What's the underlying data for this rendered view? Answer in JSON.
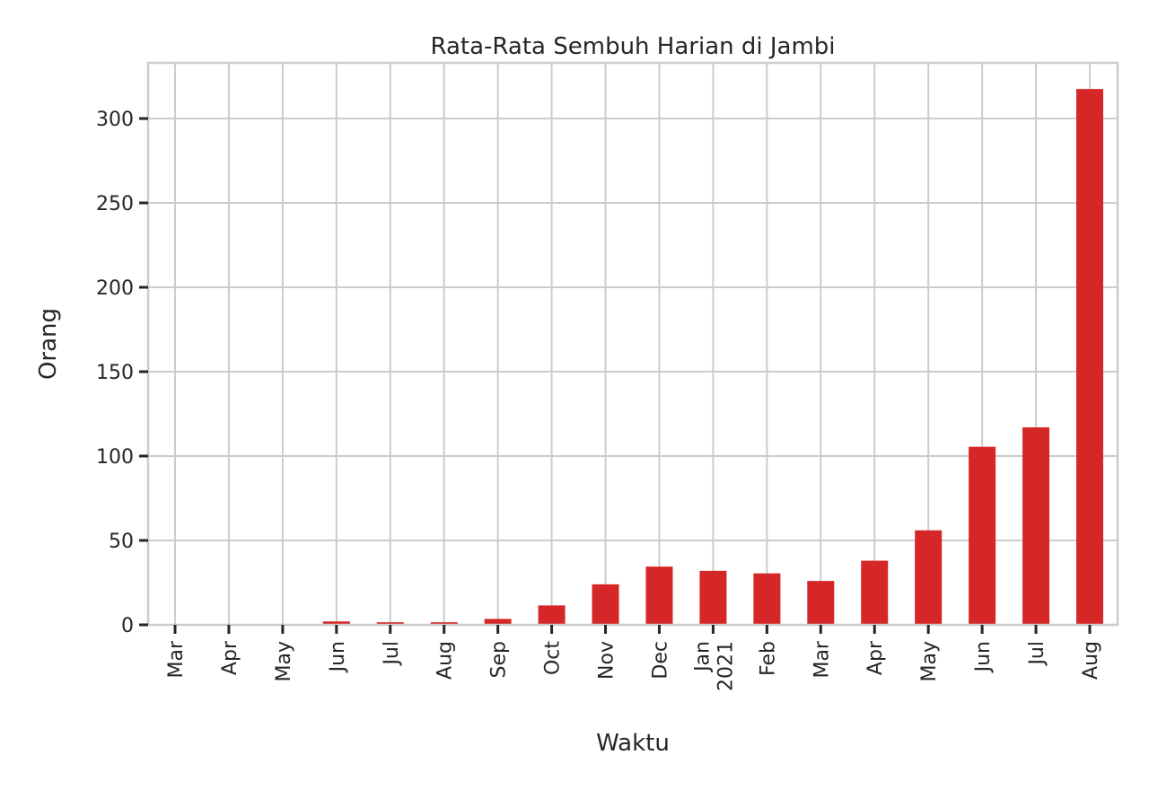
{
  "chart_data": {
    "type": "bar",
    "title": "Rata-Rata Sembuh Harian di Jambi",
    "xlabel": "Waktu",
    "ylabel": "Orang",
    "categories": [
      "Mar",
      "Apr",
      "May",
      "Jun",
      "Jul",
      "Aug",
      "Sep",
      "Oct",
      "Nov",
      "Dec",
      "Jan\n2021",
      "Feb",
      "Mar",
      "Apr",
      "May",
      "Jun",
      "Jul",
      "Aug"
    ],
    "values": [
      0,
      0,
      0,
      2,
      1.5,
      1.5,
      3.5,
      11.5,
      24,
      34.5,
      32,
      30.5,
      26,
      38,
      56,
      105.5,
      117,
      317.5
    ],
    "ylim": [
      0,
      333
    ],
    "yticks": [
      0,
      50,
      100,
      150,
      200,
      250,
      300
    ],
    "grid": true,
    "bar_color": "#d62728"
  }
}
